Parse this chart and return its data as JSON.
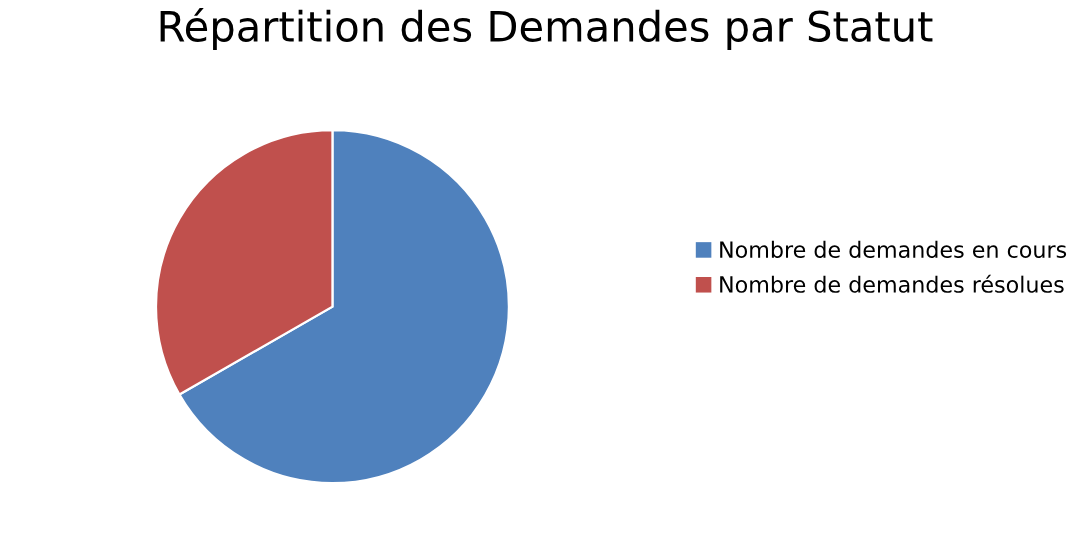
{
  "chart_data": {
    "type": "pie",
    "title": "Répartition des Demandes par Statut",
    "categories": [
      "Nombre de demandes en cours",
      "Nombre de demandes résolues"
    ],
    "values": [
      66.7,
      33.3
    ],
    "colors": [
      "#4f81bd",
      "#c0504d"
    ],
    "legend": "right"
  }
}
